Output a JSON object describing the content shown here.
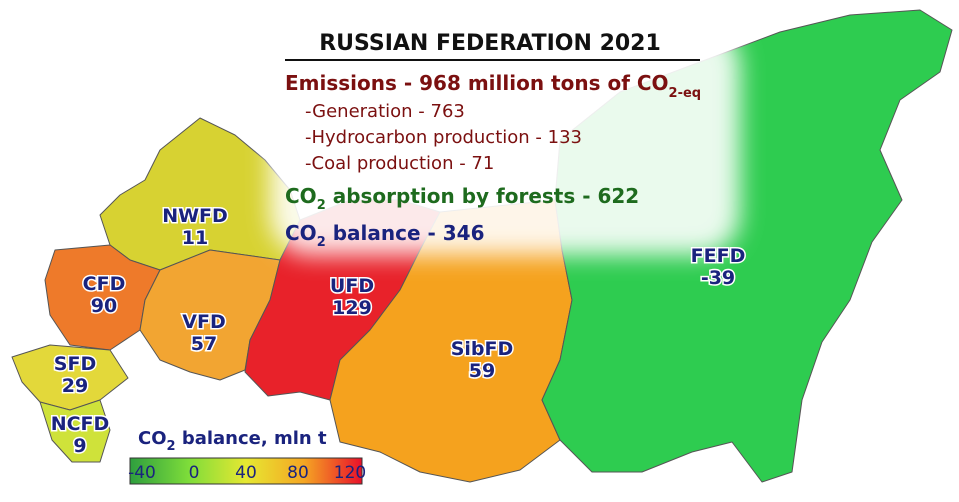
{
  "title": "RUSSIAN FEDERATION 2021",
  "emissions": {
    "text": "Emissions - 968 million tons of CO",
    "subscript": "2-eq",
    "items": [
      "-Generation - 763",
      "-Hydrocarbon production - 133",
      "-Coal production - 71"
    ]
  },
  "absorption": {
    "text": "CO",
    "subscript": "2",
    "rest": " absorption by forests - 622"
  },
  "balance": {
    "text": "CO",
    "subscript": "2",
    "rest": " balance - 346"
  },
  "districts": [
    {
      "name": "NWFD",
      "value": 11
    },
    {
      "name": "CFD",
      "value": 90
    },
    {
      "name": "VFD",
      "value": 57
    },
    {
      "name": "SFD",
      "value": 29
    },
    {
      "name": "NCFD",
      "value": 9
    },
    {
      "name": "UFD",
      "value": 129
    },
    {
      "name": "SibFD",
      "value": 59
    },
    {
      "name": "FEFD",
      "value": -39
    }
  ],
  "legend": {
    "text": "CO",
    "subscript": "2",
    "rest": " balance, mln t",
    "ticks": [
      -40,
      0,
      40,
      80,
      120
    ]
  }
}
